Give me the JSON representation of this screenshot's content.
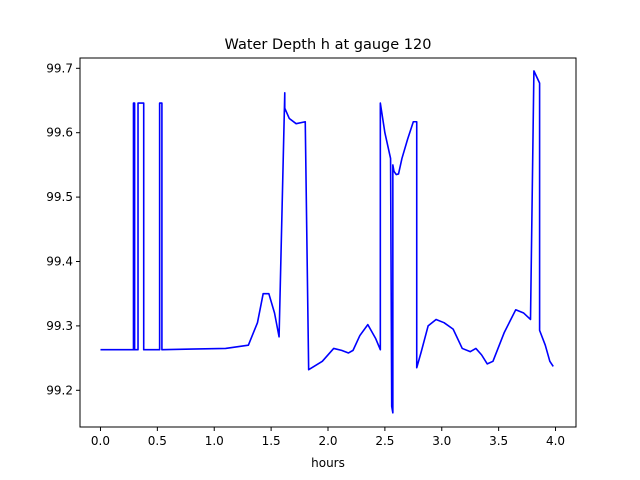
{
  "chart_data": {
    "type": "line",
    "title": "Water Depth h at gauge 120",
    "xlabel": "hours",
    "ylabel": "",
    "xlim": [
      -0.18,
      4.18
    ],
    "ylim": [
      99.143,
      99.716
    ],
    "xticks": [
      0.0,
      0.5,
      1.0,
      1.5,
      2.0,
      2.5,
      3.0,
      3.5,
      4.0
    ],
    "xtick_labels": [
      "0.0",
      "0.5",
      "1.0",
      "1.5",
      "2.0",
      "2.5",
      "3.0",
      "3.5",
      "4.0"
    ],
    "yticks": [
      99.2,
      99.3,
      99.4,
      99.5,
      99.6,
      99.7
    ],
    "ytick_labels": [
      "99.2",
      "99.3",
      "99.4",
      "99.5",
      "99.6",
      "99.7"
    ],
    "grid": false,
    "legend": "none",
    "series": [
      {
        "color": "#0000ff",
        "x": [
          0.0,
          0.29,
          0.29,
          0.3,
          0.3,
          0.33,
          0.33,
          0.38,
          0.38,
          0.52,
          0.52,
          0.54,
          0.54,
          0.8,
          1.1,
          1.3,
          1.38,
          1.43,
          1.48,
          1.53,
          1.57,
          1.62,
          1.62,
          1.66,
          1.72,
          1.8,
          1.83,
          1.83,
          1.95,
          2.05,
          2.12,
          2.18,
          2.22,
          2.28,
          2.35,
          2.42,
          2.46,
          2.46,
          2.5,
          2.55,
          2.56,
          2.57,
          2.57,
          2.58,
          2.6,
          2.62,
          2.65,
          2.7,
          2.75,
          2.78,
          2.78,
          2.82,
          2.88,
          2.95,
          3.02,
          3.1,
          3.18,
          3.25,
          3.3,
          3.35,
          3.4,
          3.45,
          3.55,
          3.65,
          3.72,
          3.78,
          3.81,
          3.81,
          3.86,
          3.86,
          3.91,
          3.95,
          3.98
        ],
        "y": [
          99.263,
          99.263,
          99.646,
          99.646,
          99.263,
          99.263,
          99.646,
          99.646,
          99.263,
          99.263,
          99.646,
          99.646,
          99.263,
          99.264,
          99.265,
          99.27,
          99.305,
          99.35,
          99.35,
          99.32,
          99.283,
          99.662,
          99.638,
          99.622,
          99.614,
          99.617,
          99.232,
          99.232,
          99.245,
          99.265,
          99.262,
          99.258,
          99.262,
          99.285,
          99.302,
          99.28,
          99.263,
          99.646,
          99.6,
          99.56,
          99.175,
          99.165,
          99.55,
          99.54,
          99.535,
          99.536,
          99.56,
          99.59,
          99.617,
          99.617,
          99.235,
          99.26,
          99.3,
          99.31,
          99.305,
          99.295,
          99.265,
          99.26,
          99.265,
          99.255,
          99.241,
          99.245,
          99.29,
          99.325,
          99.32,
          99.31,
          99.696,
          99.696,
          99.677,
          99.293,
          99.27,
          99.245,
          99.237
        ]
      }
    ]
  }
}
